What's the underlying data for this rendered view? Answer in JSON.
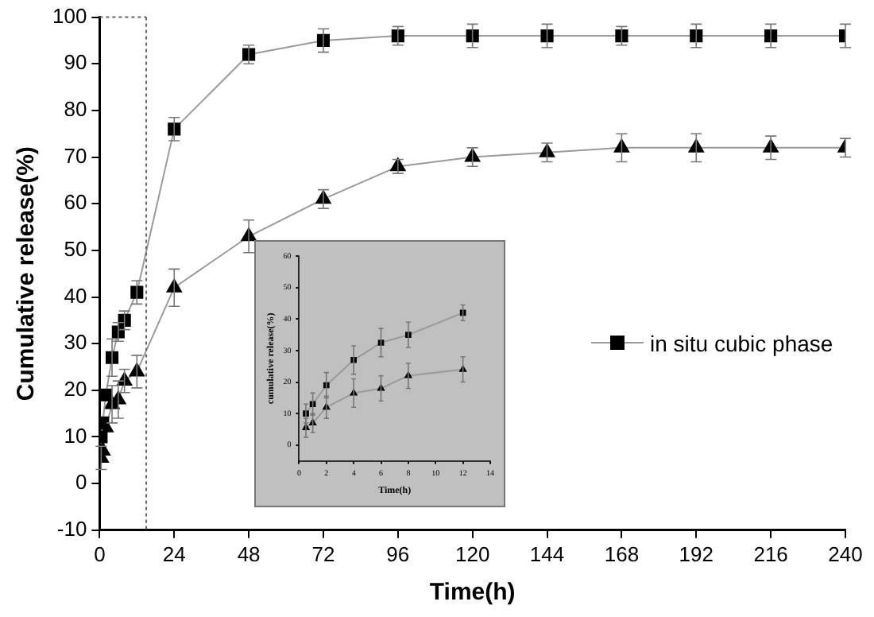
{
  "chart_data": [
    {
      "type": "line",
      "xlabel": "Time(h)",
      "ylabel": "Cumulative release(%)",
      "x": [
        0.5,
        1,
        2,
        4,
        6,
        8,
        12,
        24,
        48,
        72,
        96,
        120,
        144,
        168,
        192,
        216,
        240
      ],
      "series": [
        {
          "name": "in situ cubic phase",
          "color": "#000000",
          "marker": "square",
          "values": [
            10,
            13,
            19,
            27,
            32.5,
            35,
            41,
            76,
            92,
            95,
            96,
            96,
            96,
            96,
            96,
            96,
            96
          ],
          "errors": [
            null,
            null,
            null,
            4,
            2,
            2,
            2.5,
            2.5,
            2,
            2.5,
            2,
            2.5,
            2.5,
            2,
            2.5,
            2.5,
            2.5
          ]
        },
        {
          "color": "#000000",
          "marker": "triangle",
          "values": [
            5.5,
            7,
            12,
            17,
            18,
            22,
            24,
            42,
            53,
            61,
            68,
            70,
            71,
            72,
            72,
            72,
            72
          ],
          "errors": [
            2.5,
            null,
            null,
            4,
            4,
            2.5,
            3.5,
            4,
            3.5,
            2,
            1.5,
            2,
            2,
            3,
            3,
            2.5,
            2
          ]
        }
      ],
      "xlim": [
        0,
        240
      ],
      "xticks": [
        0,
        24,
        48,
        72,
        96,
        120,
        144,
        168,
        192,
        216,
        240
      ],
      "ylim": [
        -10,
        100
      ],
      "yticks": [
        -10,
        0,
        10,
        20,
        30,
        40,
        50,
        60,
        70,
        80,
        90,
        100
      ],
      "ref_lines": [
        {
          "axis": "x",
          "value": 15,
          "line_style": "dotted"
        }
      ],
      "grid": false,
      "legend": "right",
      "line_style": "solid"
    },
    {
      "type": "line",
      "xlabel": "Time(h)",
      "ylabel": "cumulative release(%)",
      "x": [
        0.5,
        1,
        2,
        4,
        6,
        8,
        12
      ],
      "series": [
        {
          "color": "#000000",
          "marker": "square",
          "values": [
            10,
            13,
            19,
            27,
            32.5,
            35,
            42
          ],
          "errors": [
            3,
            3.5,
            4,
            4.5,
            4.5,
            4,
            2.5
          ]
        },
        {
          "color": "#000000",
          "marker": "triangle",
          "values": [
            5.5,
            7,
            12,
            16.5,
            18,
            22,
            24
          ],
          "errors": [
            3,
            3,
            3.5,
            4.5,
            4,
            4,
            4
          ]
        }
      ],
      "xlim": [
        0,
        14
      ],
      "xticks": [
        0,
        2,
        4,
        6,
        8,
        10,
        12,
        14
      ],
      "ylim": [
        -5,
        60
      ],
      "yticks": [
        0,
        10,
        20,
        30,
        40,
        50,
        60
      ],
      "grid": false,
      "line_style": "solid"
    }
  ]
}
